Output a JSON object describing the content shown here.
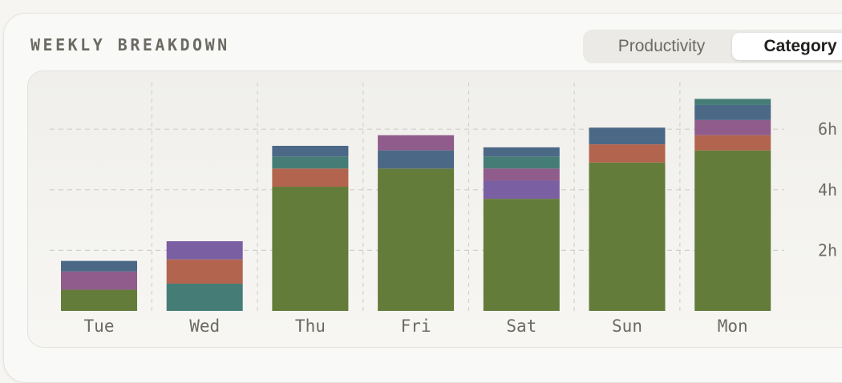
{
  "header": {
    "title": "WEEKLY BREAKDOWN",
    "tabs": [
      {
        "label": "Productivity",
        "active": false
      },
      {
        "label": "Category",
        "active": true
      }
    ]
  },
  "chart_data": {
    "type": "bar",
    "stacked": true,
    "title": "",
    "xlabel": "",
    "ylabel": "",
    "categories": [
      "Tue",
      "Wed",
      "Thu",
      "Fri",
      "Sat",
      "Sun",
      "Mon"
    ],
    "yticks": [
      {
        "value": 2,
        "label": "2h"
      },
      {
        "value": 4,
        "label": "4h"
      },
      {
        "value": 6,
        "label": "6h"
      }
    ],
    "ylim": [
      0,
      7.5
    ],
    "grid": true,
    "series": [
      {
        "color": "#647c3a",
        "values": [
          0.7,
          0,
          4.1,
          4.7,
          3.7,
          4.9,
          5.3
        ]
      },
      {
        "color": "#457d76",
        "values": [
          0,
          0.9,
          0,
          0,
          0,
          0,
          0
        ]
      },
      {
        "color": "#b3644e",
        "values": [
          0,
          0.8,
          0.6,
          0,
          0,
          0.6,
          0.5
        ]
      },
      {
        "color": "#7a5fa3",
        "values": [
          0,
          0.6,
          0,
          0,
          0.6,
          0,
          0
        ]
      },
      {
        "color": "#8f5c8c",
        "values": [
          0.6,
          0,
          0,
          0,
          0.4,
          0,
          0.5
        ]
      },
      {
        "color": "#457d76",
        "values": [
          0,
          0,
          0.4,
          0,
          0.4,
          0,
          0
        ]
      },
      {
        "color": "#4c6887",
        "values": [
          0.35,
          0,
          0.35,
          0.6,
          0.3,
          0.55,
          0.5
        ]
      },
      {
        "color": "#8f5c8c",
        "values": [
          0,
          0,
          0,
          0.5,
          0,
          0,
          0
        ]
      },
      {
        "color": "#457d76",
        "values": [
          0,
          0,
          0,
          0,
          0,
          0,
          0.2
        ]
      }
    ]
  }
}
